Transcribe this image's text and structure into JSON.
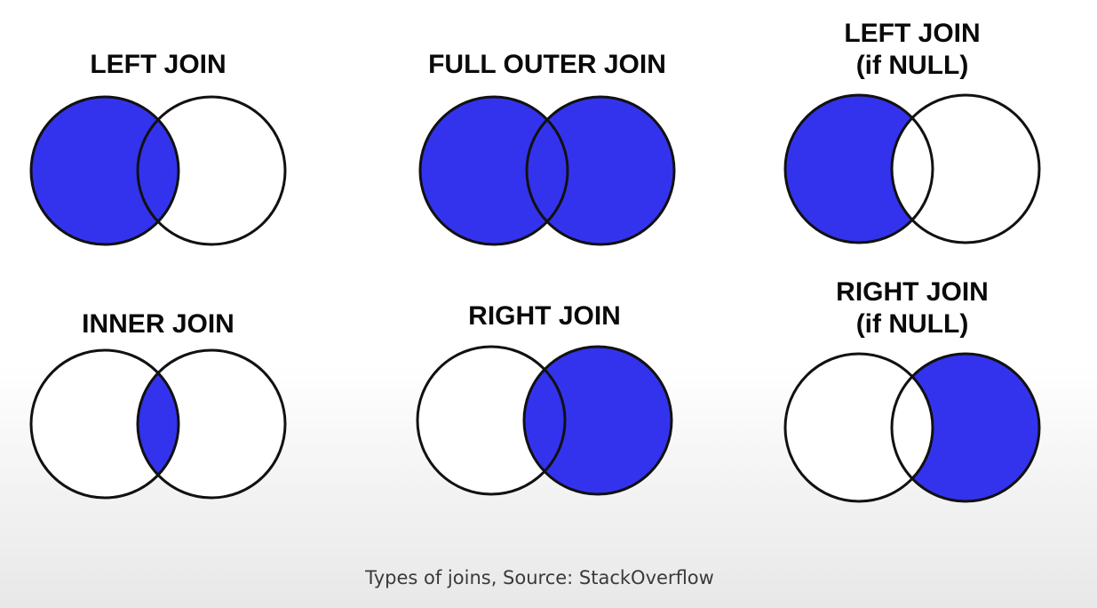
{
  "fill_color": "#3333ee",
  "stroke_color": "#111111",
  "diagrams": [
    {
      "key": "left_join",
      "title": [
        "LEFT JOIN"
      ],
      "fill": [
        "left",
        "overlap"
      ]
    },
    {
      "key": "full_outer_join",
      "title": [
        "FULL OUTER JOIN"
      ],
      "fill": [
        "left",
        "overlap",
        "right"
      ]
    },
    {
      "key": "left_join_if_null",
      "title": [
        "LEFT JOIN",
        "(if NULL)"
      ],
      "fill": [
        "left"
      ]
    },
    {
      "key": "inner_join",
      "title": [
        "INNER JOIN"
      ],
      "fill": [
        "overlap"
      ]
    },
    {
      "key": "right_join",
      "title": [
        "RIGHT JOIN"
      ],
      "fill": [
        "overlap",
        "right"
      ]
    },
    {
      "key": "right_join_if_null",
      "title": [
        "RIGHT JOIN",
        "(if NULL)"
      ],
      "fill": [
        "right"
      ]
    }
  ],
  "caption": "Types of joins, Source: StackOverflow"
}
